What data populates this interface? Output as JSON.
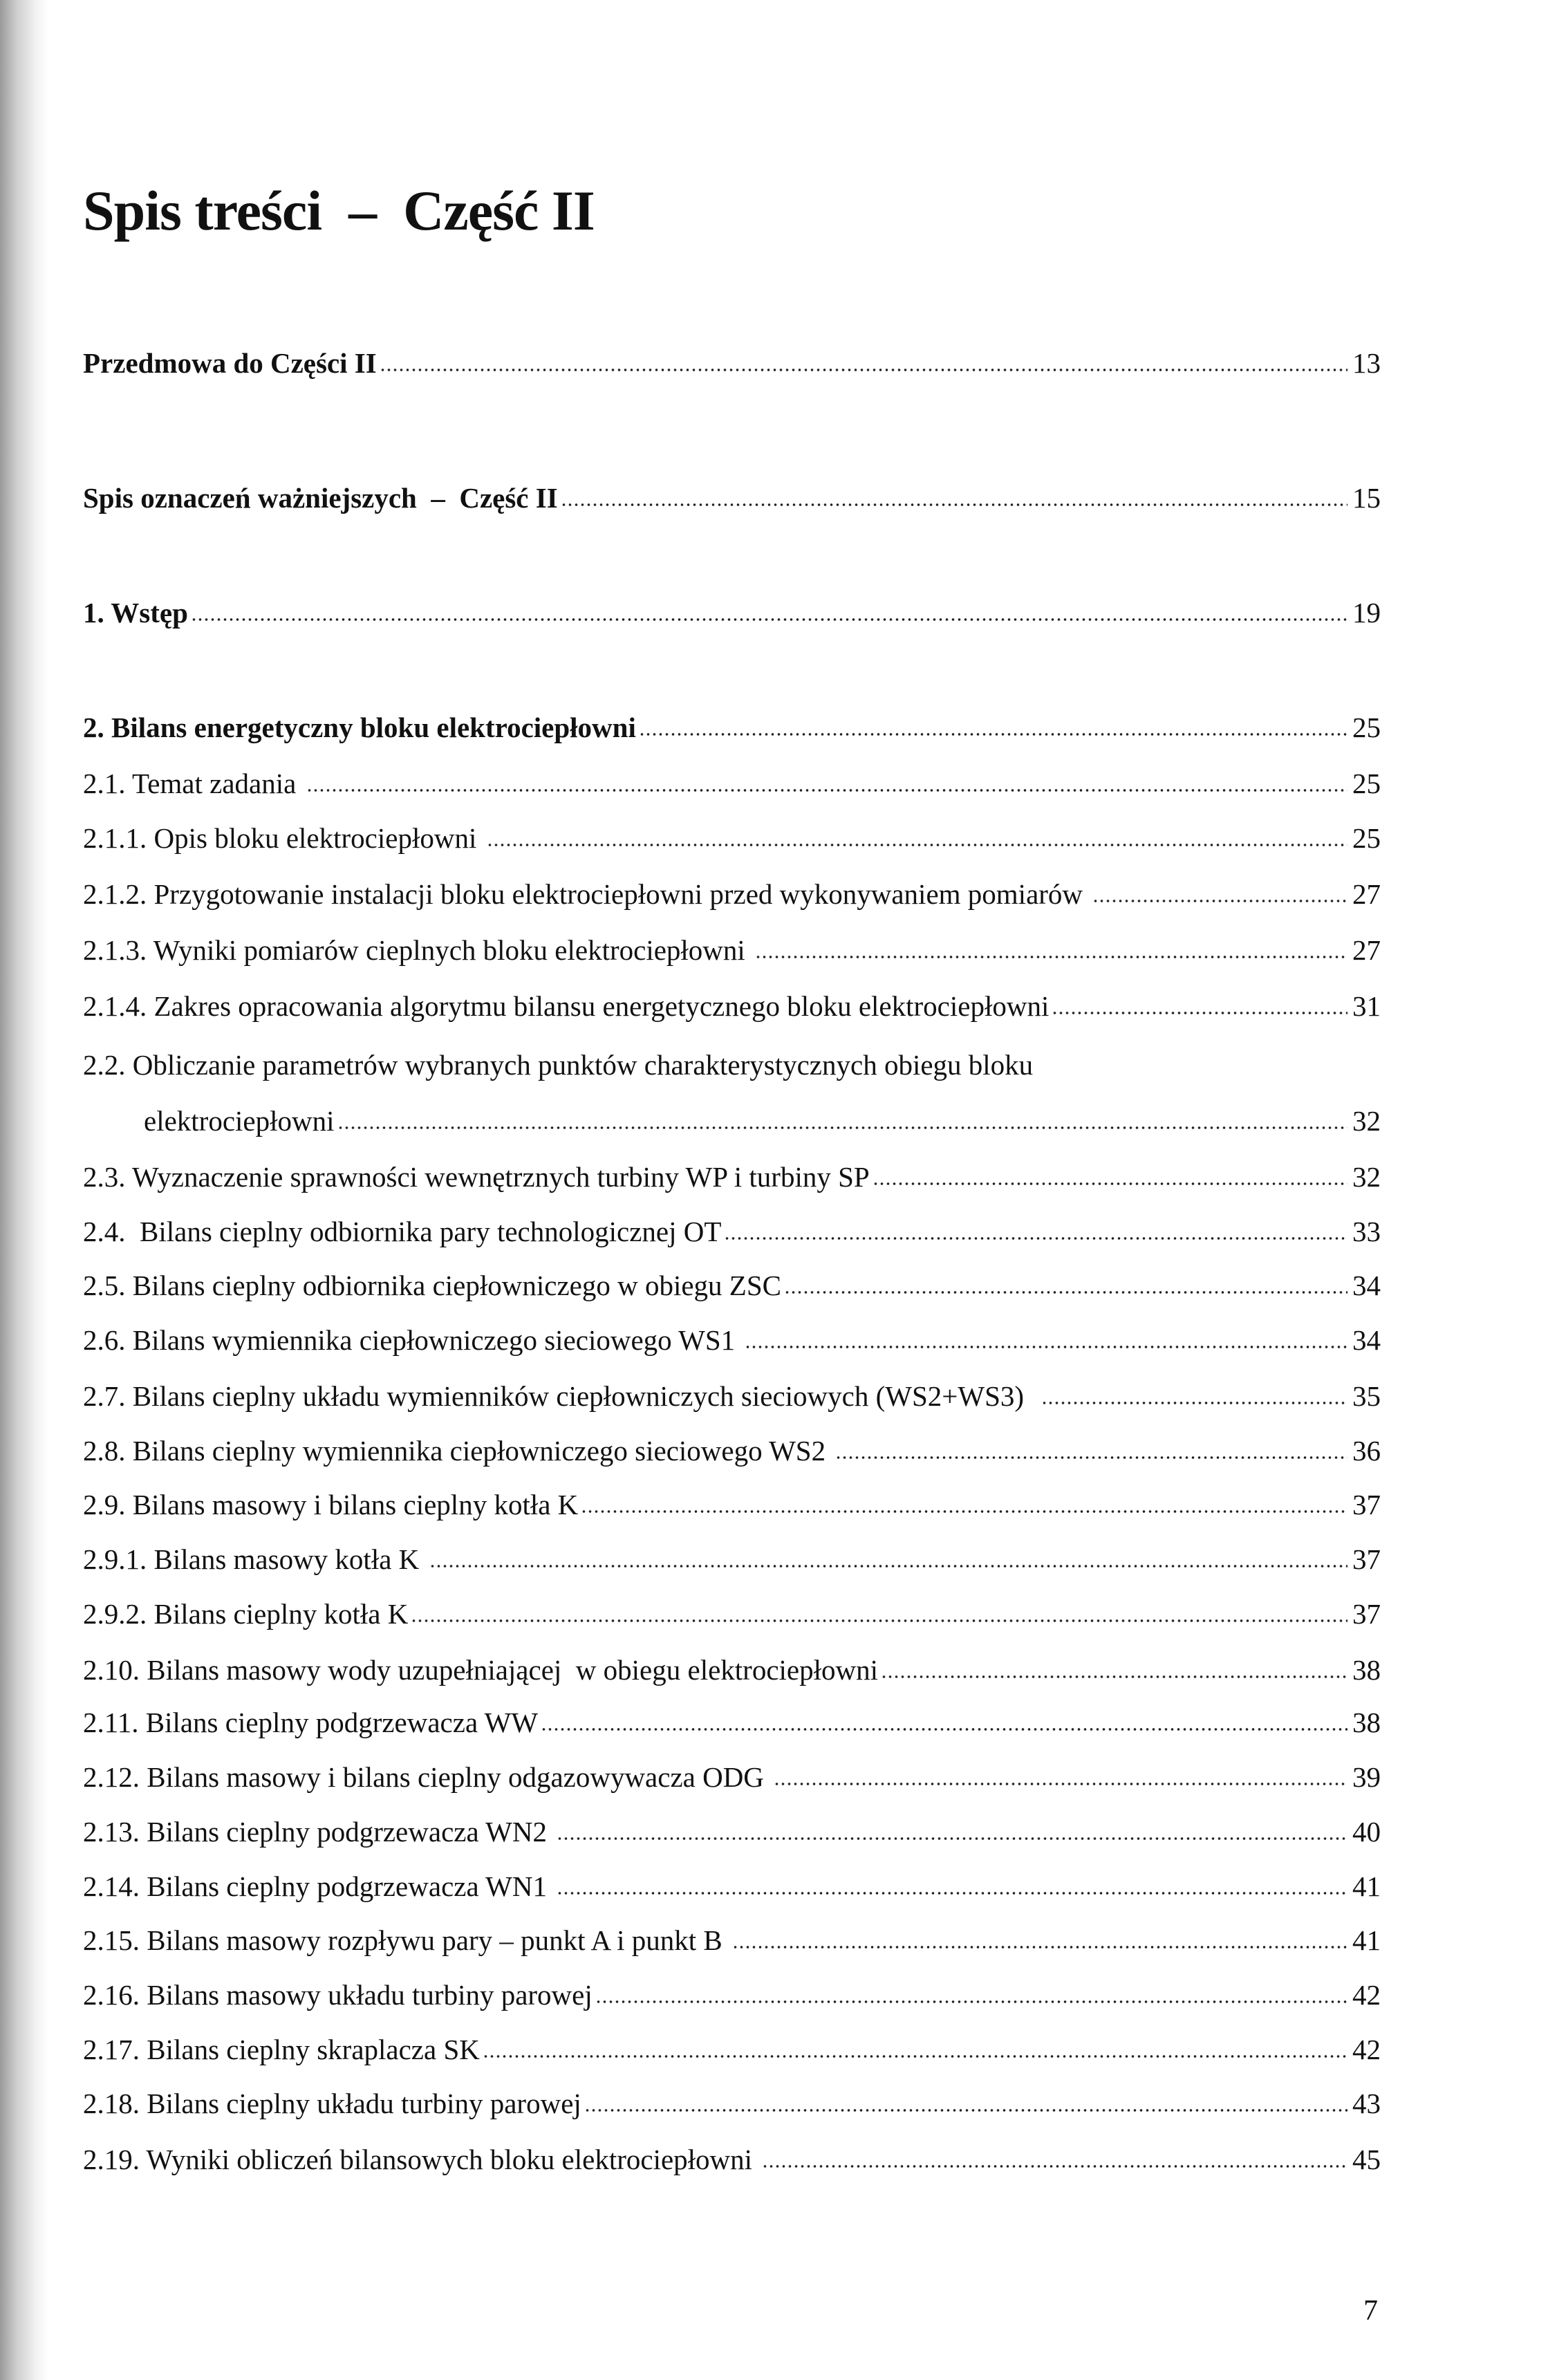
{
  "title": "Spis treści  –  Część II",
  "entries": [
    {
      "label": "Przedmowa do Części II",
      "page": "13",
      "bold": true
    },
    {
      "label": "Spis oznaczeń ważniejszych  –  Część II",
      "page": "15",
      "bold": true
    },
    {
      "label": "1. Wstęp",
      "page": "19",
      "bold": true
    },
    {
      "label": "2. Bilans energetyczny bloku elektrociepłowni",
      "page": "25",
      "bold": true
    },
    {
      "label": "2.1. Temat zadania ",
      "page": "25"
    },
    {
      "label": "2.1.1. Opis bloku elektrociepłowni ",
      "page": "25"
    },
    {
      "label": "2.1.2. Przygotowanie instalacji bloku elektrociepłowni przed wykonywaniem pomiarów ",
      "page": "27"
    },
    {
      "label": "2.1.3. Wyniki pomiarów cieplnych bloku elektrociepłowni ",
      "page": "27"
    },
    {
      "label": "2.1.4. Zakres opracowania algorytmu bilansu energetycznego bloku elektrociepłowni",
      "page": "31"
    },
    {
      "label": "2.2. Obliczanie parametrów wybranych punktów charakterystycznych obiegu bloku",
      "page": ""
    },
    {
      "label": "elektrociepłowni",
      "page": "32",
      "indent": true
    },
    {
      "label": "2.3. Wyznaczenie sprawności wewnętrznych turbiny WP i turbiny SP",
      "page": "32"
    },
    {
      "label": "2.4.  Bilans cieplny odbiornika pary technologicznej OT",
      "page": "33"
    },
    {
      "label": "2.5. Bilans cieplny odbiornika ciepłowniczego w obiegu ZSC",
      "page": "34"
    },
    {
      "label": "2.6. Bilans wymiennika ciepłowniczego sieciowego WS1 ",
      "page": "34"
    },
    {
      "label": "2.7. Bilans cieplny układu wymienników ciepłowniczych sieciowych (WS2+WS3)  ",
      "page": "35"
    },
    {
      "label": "2.8. Bilans cieplny wymiennika ciepłowniczego sieciowego WS2 ",
      "page": "36"
    },
    {
      "label": "2.9. Bilans masowy i bilans cieplny kotła K",
      "page": "37"
    },
    {
      "label": "2.9.1. Bilans masowy kotła K ",
      "page": "37"
    },
    {
      "label": "2.9.2. Bilans cieplny kotła K",
      "page": "37"
    },
    {
      "label": "2.10. Bilans masowy wody uzupełniającej  w obiegu elektrociepłowni",
      "page": "38"
    },
    {
      "label": "2.11. Bilans cieplny podgrzewacza WW",
      "page": "38"
    },
    {
      "label": "2.12. Bilans masowy i bilans cieplny odgazowywacza ODG ",
      "page": "39"
    },
    {
      "label": "2.13. Bilans cieplny podgrzewacza WN2 ",
      "page": "40"
    },
    {
      "label": "2.14. Bilans cieplny podgrzewacza WN1 ",
      "page": "41"
    },
    {
      "label": "2.15. Bilans masowy rozpływu pary – punkt A i punkt B ",
      "page": "41"
    },
    {
      "label": "2.16. Bilans masowy układu turbiny parowej",
      "page": "42"
    },
    {
      "label": "2.17. Bilans cieplny skraplacza SK",
      "page": "42"
    },
    {
      "label": "2.18. Bilans cieplny układu turbiny parowej",
      "page": "43"
    },
    {
      "label": "2.19. Wyniki obliczeń bilansowych bloku elektrociepłowni ",
      "page": "45"
    }
  ],
  "page_number": "7"
}
